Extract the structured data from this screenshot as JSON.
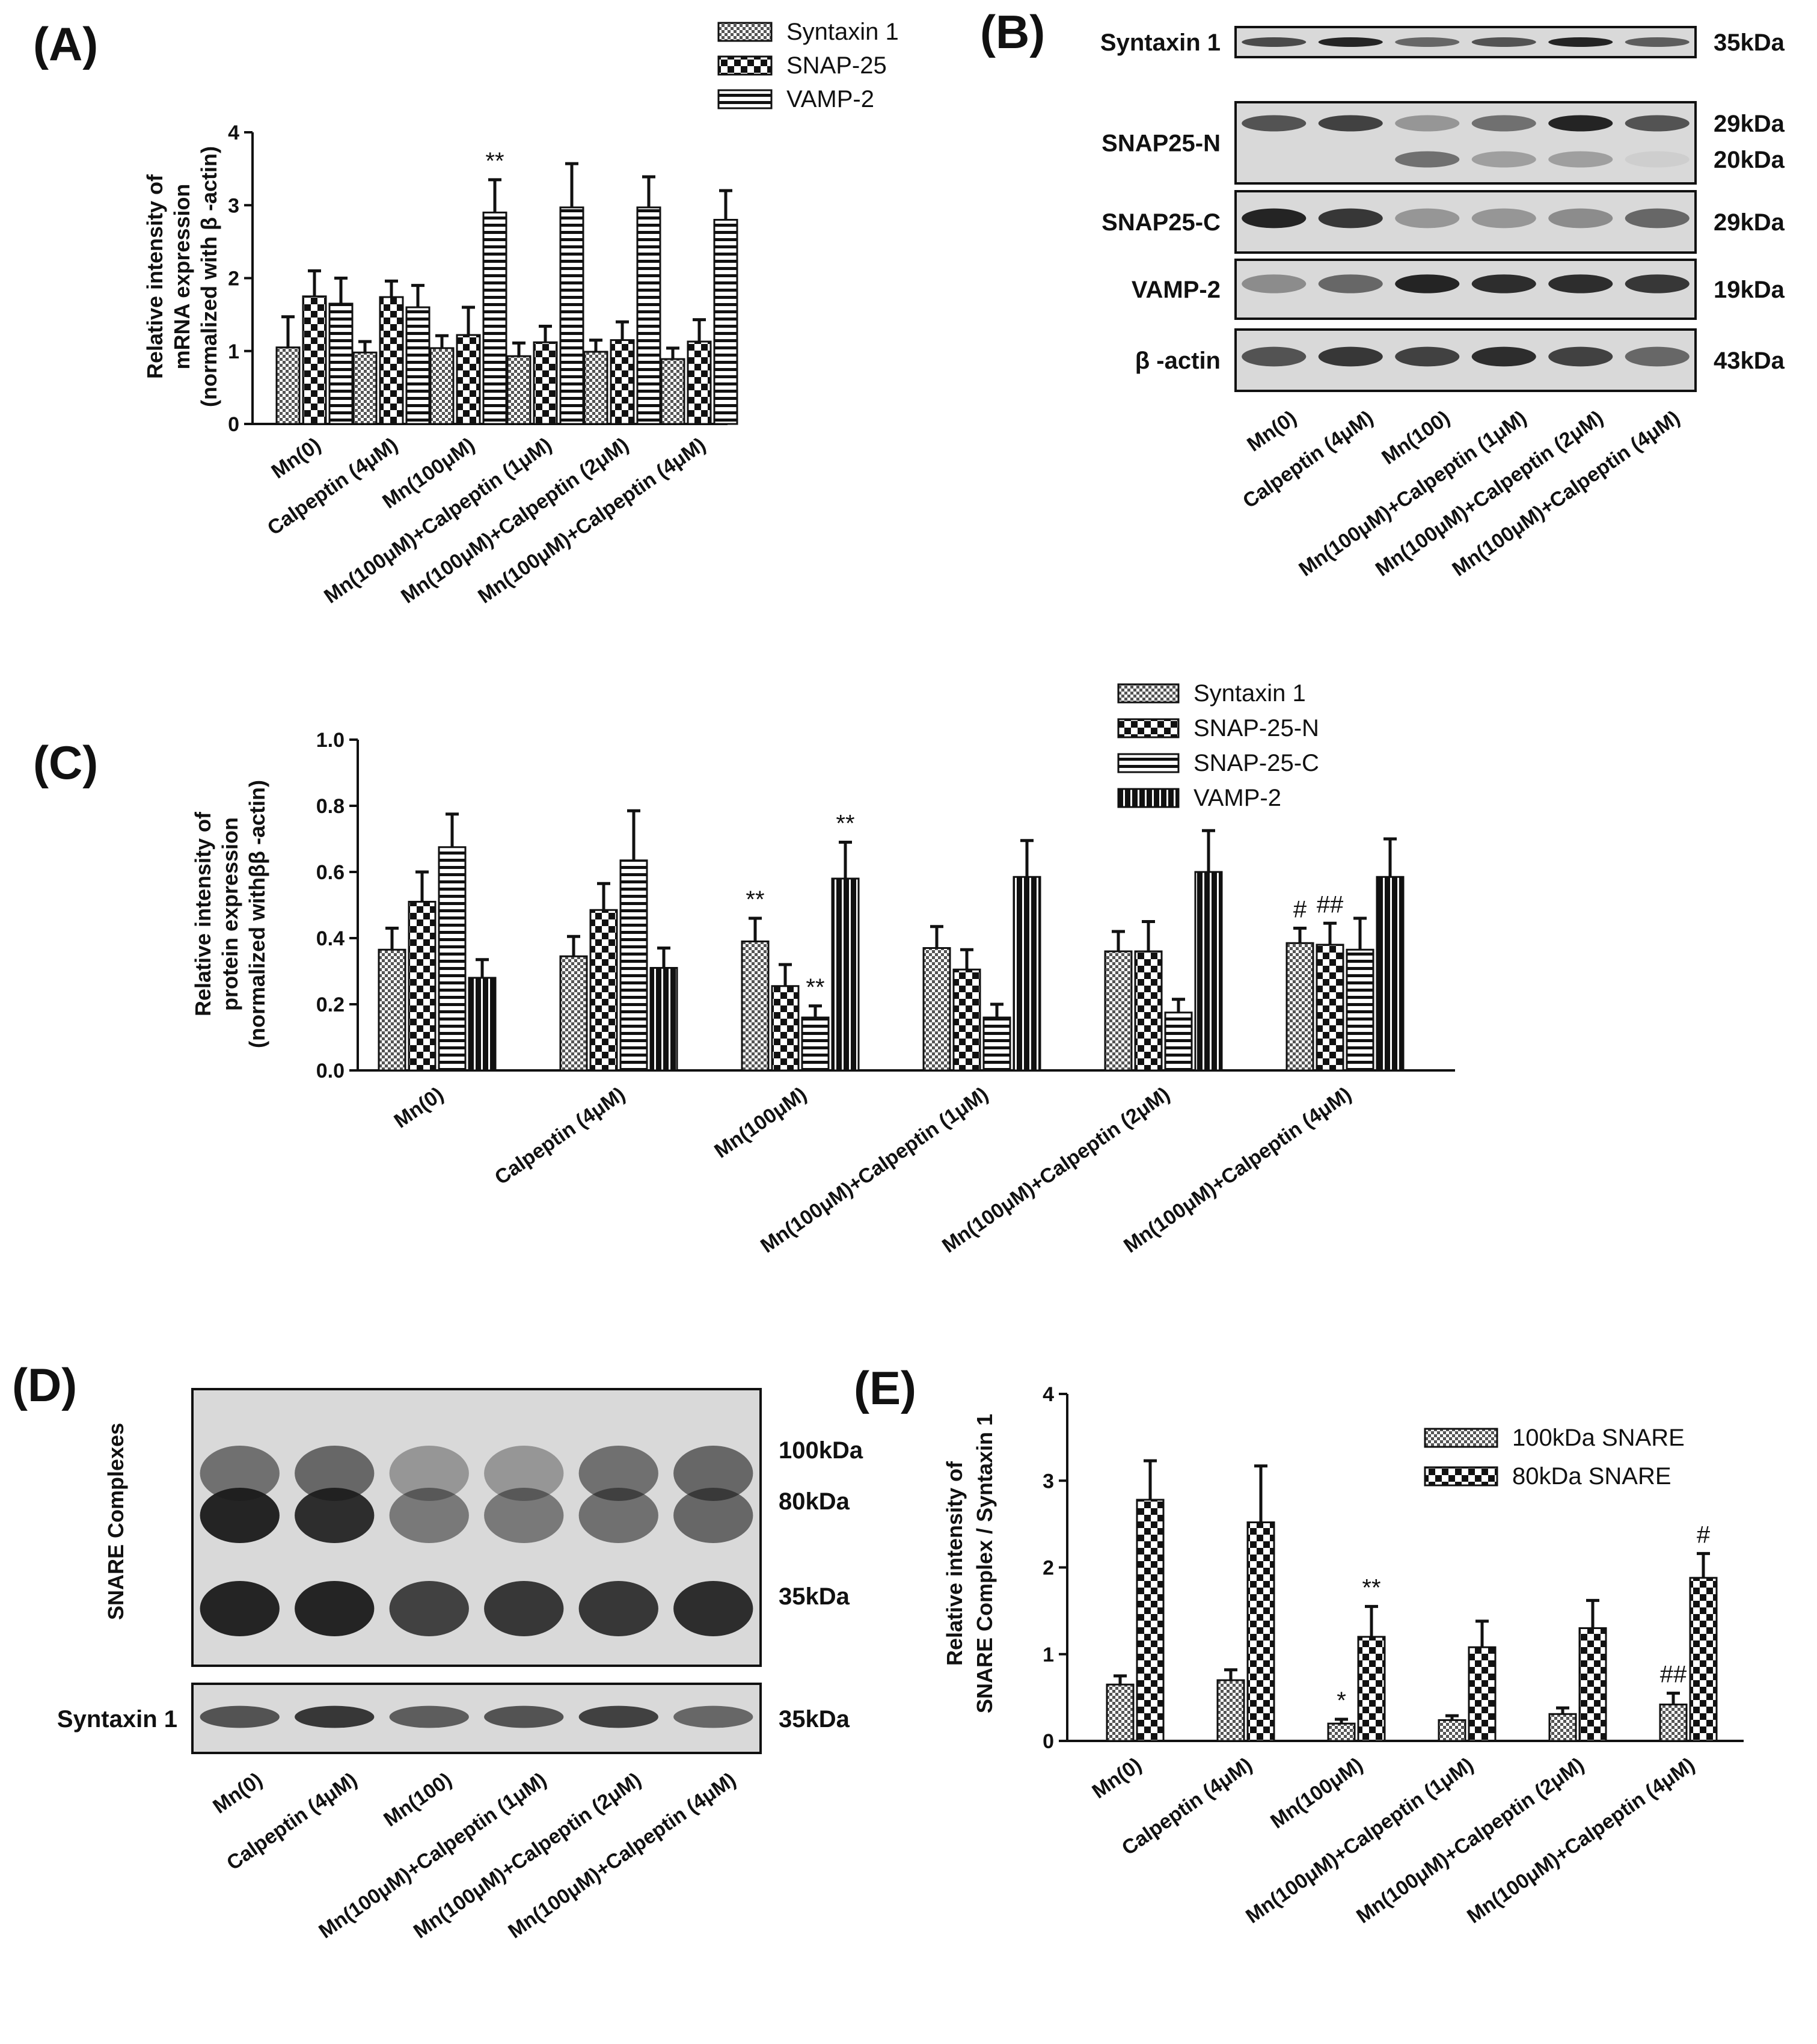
{
  "colors": {
    "ink": "#111111",
    "blot_bg": "#d6d6d6",
    "band": "#1a1a1a"
  },
  "charts": [
    {
      "id": "A",
      "type": "bar",
      "panel_label": "(A)",
      "ylabel_lines": [
        "Relative intensity of",
        "mRNA expression",
        "(normalized with β -actin)"
      ],
      "ylim": [
        0,
        4
      ],
      "yticks": [
        "0",
        "1",
        "2",
        "3",
        "4"
      ],
      "categories": [
        "Mn(0)",
        "Calpeptin (4μM)",
        "Mn(100μM)",
        "Mn(100μM)+Calpeptin (1μM)",
        "Mn(100μM)+Calpeptin (2μM)",
        "Mn(100μM)+Calpeptin (4μM)"
      ],
      "series": [
        {
          "name": "Syntaxin 1",
          "pattern": "fine",
          "values": [
            1.05,
            0.98,
            1.04,
            0.93,
            0.99,
            0.89
          ],
          "errors": [
            0.42,
            0.15,
            0.17,
            0.18,
            0.16,
            0.15
          ]
        },
        {
          "name": "SNAP-25",
          "pattern": "check",
          "values": [
            1.75,
            1.74,
            1.22,
            1.12,
            1.15,
            1.13
          ],
          "errors": [
            0.35,
            0.22,
            0.38,
            0.22,
            0.25,
            0.3
          ]
        },
        {
          "name": "VAMP-2",
          "pattern": "hstripe",
          "values": [
            1.65,
            1.6,
            2.9,
            2.97,
            2.97,
            2.8
          ],
          "errors": [
            0.35,
            0.3,
            0.45,
            0.6,
            0.42,
            0.4
          ]
        }
      ],
      "annotations": [
        {
          "text": "**",
          "category": 2,
          "series": 2
        }
      ],
      "legend_position": "top"
    },
    {
      "id": "C",
      "type": "bar",
      "panel_label": "(C)",
      "ylabel_lines": [
        "Relative intensity of",
        "protein expression",
        "(normalized withββ -actin)"
      ],
      "ylim": [
        0,
        1.0
      ],
      "yticks": [
        "0.0",
        "0.2",
        "0.4",
        "0.6",
        "0.8",
        "1.0"
      ],
      "categories": [
        "Mn(0)",
        "Calpeptin (4μM)",
        "Mn(100μM)",
        "Mn(100μM)+Calpeptin (1μM)",
        "Mn(100μM)+Calpeptin (2μM)",
        "Mn(100μM)+Calpeptin (4μM)"
      ],
      "series": [
        {
          "name": "Syntaxin 1",
          "pattern": "fine",
          "values": [
            0.365,
            0.345,
            0.39,
            0.37,
            0.36,
            0.385
          ],
          "errors": [
            0.065,
            0.06,
            0.07,
            0.065,
            0.06,
            0.045
          ]
        },
        {
          "name": "SNAP-25-N",
          "pattern": "check",
          "values": [
            0.51,
            0.485,
            0.255,
            0.305,
            0.36,
            0.38
          ],
          "errors": [
            0.09,
            0.08,
            0.065,
            0.06,
            0.09,
            0.065
          ]
        },
        {
          "name": "SNAP-25-C",
          "pattern": "hstripe",
          "values": [
            0.675,
            0.635,
            0.16,
            0.16,
            0.175,
            0.365
          ],
          "errors": [
            0.1,
            0.15,
            0.035,
            0.04,
            0.04,
            0.095
          ]
        },
        {
          "name": "VAMP-2",
          "pattern": "vstripe",
          "values": [
            0.28,
            0.31,
            0.58,
            0.585,
            0.6,
            0.585
          ],
          "errors": [
            0.055,
            0.06,
            0.11,
            0.11,
            0.125,
            0.115
          ]
        }
      ],
      "annotations": [
        {
          "text": "**",
          "category": 2,
          "series": 0
        },
        {
          "text": "**",
          "category": 2,
          "series": 2
        },
        {
          "text": "**",
          "category": 2,
          "series": 3
        },
        {
          "text": "#",
          "category": 5,
          "series": 0
        },
        {
          "text": "##",
          "category": 5,
          "series": 1
        }
      ],
      "legend_position": "top-right"
    },
    {
      "id": "E",
      "type": "bar",
      "panel_label": "(E)",
      "ylabel_lines": [
        "Relative intensity of",
        "SNARE Complex / Syntaxin 1"
      ],
      "ylim": [
        0,
        4
      ],
      "yticks": [
        "0",
        "1",
        "2",
        "3",
        "4"
      ],
      "categories": [
        "Mn(0)",
        "Calpeptin (4μM)",
        "Mn(100μM)",
        "Mn(100μM)+Calpeptin (1μM)",
        "Mn(100μM)+Calpeptin (2μM)",
        "Mn(100μM)+Calpeptin (4μM)"
      ],
      "series": [
        {
          "name": "100kDa SNARE",
          "pattern": "fine",
          "values": [
            0.65,
            0.7,
            0.2,
            0.24,
            0.31,
            0.42
          ],
          "errors": [
            0.1,
            0.12,
            0.05,
            0.05,
            0.07,
            0.13
          ]
        },
        {
          "name": "80kDa SNARE",
          "pattern": "check",
          "values": [
            2.78,
            2.52,
            1.2,
            1.08,
            1.3,
            1.88
          ],
          "errors": [
            0.45,
            0.65,
            0.35,
            0.3,
            0.32,
            0.28
          ]
        }
      ],
      "annotations": [
        {
          "text": "*",
          "category": 2,
          "series": 0
        },
        {
          "text": "**",
          "category": 2,
          "series": 1
        },
        {
          "text": "##",
          "category": 5,
          "series": 0
        },
        {
          "text": "#",
          "category": 5,
          "series": 1
        }
      ],
      "legend_position": "top-right"
    }
  ],
  "blots": [
    {
      "id": "B",
      "panel_label": "(B)",
      "lanes": [
        "Mn(0)",
        "Calpeptin (4μM)",
        "Mn(100)",
        "Mn(100μM)+Calpeptin (1μM)",
        "Mn(100μM)+Calpeptin (2μM)",
        "Mn(100μM)+Calpeptin (4μM)"
      ],
      "rows": [
        {
          "name": "Syntaxin 1",
          "markers": [
            "35kDa"
          ]
        },
        {
          "name": "SNAP25-N",
          "markers": [
            "29kDa",
            "20kDa"
          ]
        },
        {
          "name": "SNAP25-C",
          "markers": [
            "29kDa"
          ]
        },
        {
          "name": "VAMP-2",
          "markers": [
            "19kDa"
          ]
        },
        {
          "name": "β -actin",
          "markers": [
            "43kDa"
          ]
        }
      ]
    },
    {
      "id": "D",
      "panel_label": "(D)",
      "side_label": "SNARE Complexes",
      "lanes": [
        "Mn(0)",
        "Calpeptin (4μM)",
        "Mn(100)",
        "Mn(100μM)+Calpeptin (1μM)",
        "Mn(100μM)+Calpeptin (2μM)",
        "Mn(100μM)+Calpeptin (4μM)"
      ],
      "markers": [
        "100kDa",
        "80kDa",
        "35kDa"
      ],
      "lower_row": {
        "name": "Syntaxin 1",
        "marker": "35kDa"
      }
    }
  ]
}
